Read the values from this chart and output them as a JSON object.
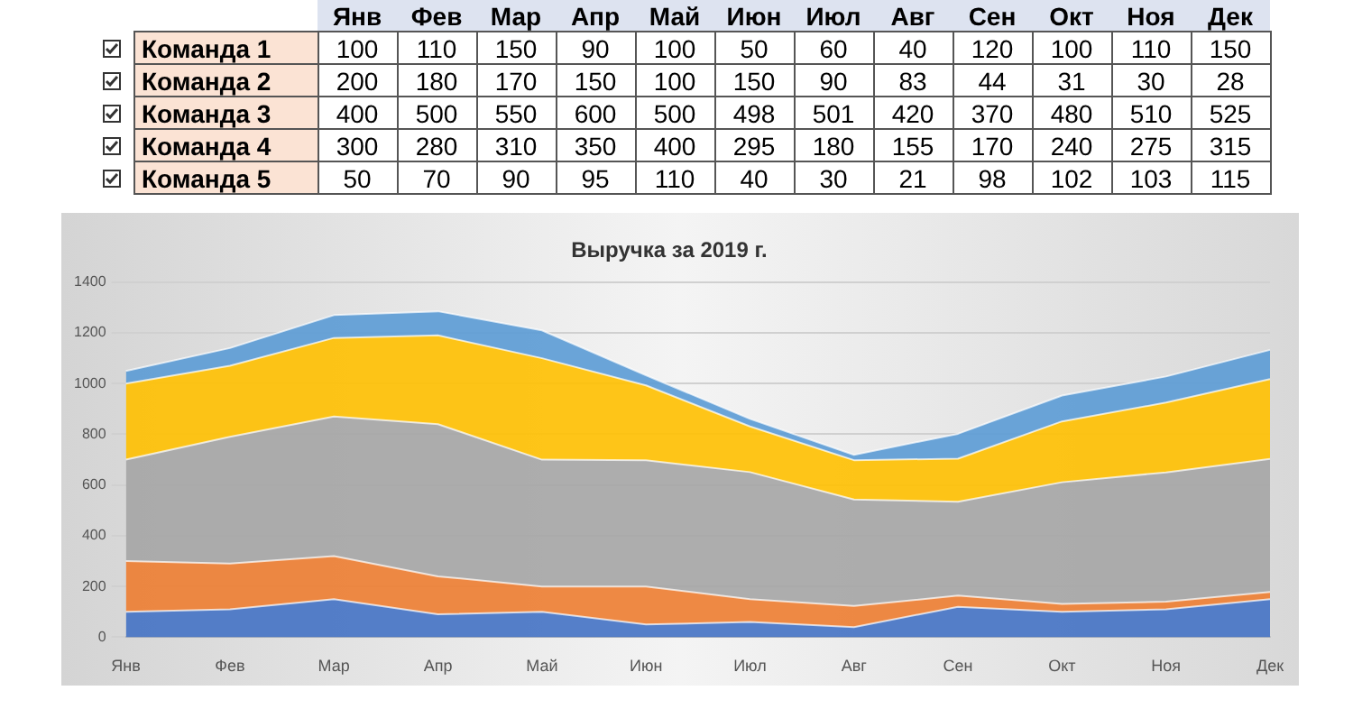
{
  "chart_data": [
    {
      "type": "heatmap",
      "categories": [
        "Янв",
        "Фев",
        "Мар",
        "Апр",
        "Май",
        "Июн",
        "Июл",
        "Авг",
        "Сен",
        "Окт",
        "Ноя",
        "Дек"
      ],
      "y_categories": [
        "Команда 1",
        "Команда 2",
        "Команда 3",
        "Команда 4",
        "Команда 5"
      ],
      "cells": [
        [
          100,
          110,
          150,
          90,
          100,
          50,
          60,
          40,
          120,
          100,
          110,
          150
        ],
        [
          200,
          180,
          170,
          150,
          100,
          150,
          90,
          83,
          44,
          31,
          30,
          28
        ],
        [
          400,
          500,
          550,
          600,
          500,
          498,
          501,
          420,
          370,
          480,
          510,
          525
        ],
        [
          300,
          280,
          310,
          350,
          400,
          295,
          180,
          155,
          170,
          240,
          275,
          315
        ],
        [
          50,
          70,
          90,
          95,
          110,
          40,
          30,
          21,
          98,
          102,
          103,
          115
        ]
      ],
      "data_labels": true
    },
    {
      "type": "area",
      "title": "Выручка за 2019 г.",
      "categories": [
        "Янв",
        "Фев",
        "Мар",
        "Апр",
        "Май",
        "Июн",
        "Июл",
        "Авг",
        "Сен",
        "Окт",
        "Ноя",
        "Дек"
      ],
      "series": [
        {
          "color": "#4472c4",
          "values": [
            100,
            110,
            150,
            90,
            100,
            50,
            60,
            40,
            120,
            100,
            110,
            150
          ]
        },
        {
          "color": "#ed7d31",
          "values": [
            200,
            180,
            170,
            150,
            100,
            150,
            90,
            83,
            44,
            31,
            30,
            28
          ]
        },
        {
          "color": "#a5a5a5",
          "values": [
            400,
            500,
            550,
            600,
            500,
            498,
            501,
            420,
            370,
            480,
            510,
            525
          ]
        },
        {
          "color": "#ffc000",
          "values": [
            300,
            280,
            310,
            350,
            400,
            295,
            180,
            155,
            170,
            240,
            275,
            315
          ]
        },
        {
          "color": "#5b9bd5",
          "values": [
            50,
            70,
            90,
            95,
            110,
            40,
            30,
            21,
            98,
            102,
            103,
            115
          ]
        }
      ],
      "stacked": true,
      "ylim": [
        0,
        1400
      ],
      "yticks": [
        0,
        200,
        400,
        600,
        800,
        1000,
        1200,
        1400
      ],
      "grid": "y"
    }
  ]
}
